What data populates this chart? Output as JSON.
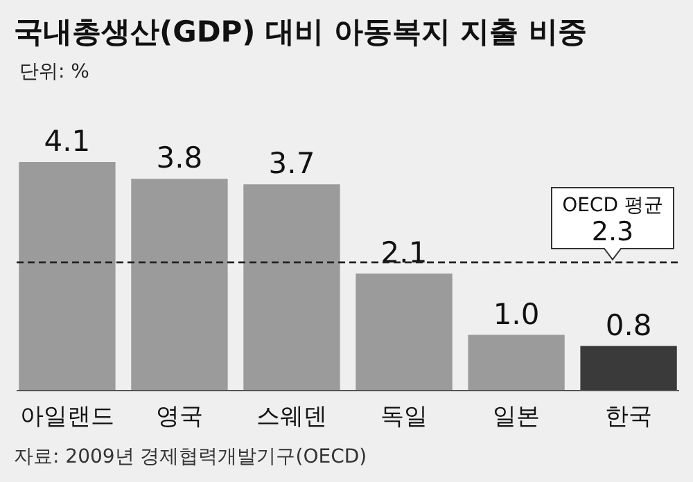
{
  "chart_data": {
    "type": "bar",
    "title": "국내총생산(GDP) 대비 아동복지 지출 비중",
    "subtitle": "단위: %",
    "categories": [
      "아일랜드",
      "영국",
      "스웨덴",
      "독일",
      "일본",
      "한국"
    ],
    "values": [
      4.1,
      3.8,
      3.7,
      2.1,
      1.0,
      0.8
    ],
    "colors": [
      "#9b9b9b",
      "#9b9b9b",
      "#9b9b9b",
      "#9b9b9b",
      "#9b9b9b",
      "#3a3a3a"
    ],
    "value_labels": [
      "4.1",
      "3.8",
      "3.7",
      "2.1",
      "1.0",
      "0.8"
    ],
    "ref_lines": [
      {
        "axis": "y",
        "value": 2.3,
        "label": "OECD 평균\n2.3",
        "line_style": "dashed",
        "color": "#222222"
      }
    ],
    "annotations": [
      "자료: 2009년 경제협력개발기구(OECD)"
    ]
  }
}
